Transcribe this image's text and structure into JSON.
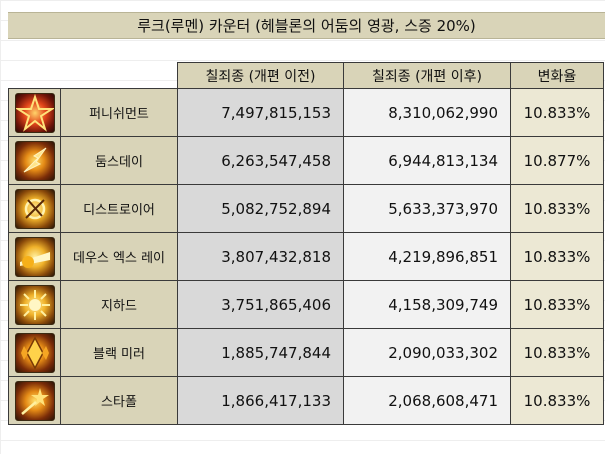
{
  "title": "루크(루멘) 카운터 (헤블론의 어둠의 영광, 스증 20%)",
  "headers": {
    "before": "칠죄종 (개편 이전)",
    "after": "칠죄종 (개편 이후)",
    "rate": "변화율"
  },
  "colors": {
    "header_bg": "#d9d4b8",
    "before_bg": "#d9d9d9",
    "after_bg": "#f2f2f2",
    "rate_bg": "#ece8d4"
  },
  "rows": [
    {
      "icon": "punishment-skill-icon",
      "name": "퍼니쉬먼트",
      "before": "7,497,815,153",
      "after": "8,310,062,990",
      "rate": "10.833%"
    },
    {
      "icon": "doomsday-skill-icon",
      "name": "둠스데이",
      "before": "6,263,547,458",
      "after": "6,944,813,134",
      "rate": "10.877%"
    },
    {
      "icon": "destroyer-skill-icon",
      "name": "디스트로이어",
      "before": "5,082,752,894",
      "after": "5,633,373,970",
      "rate": "10.833%"
    },
    {
      "icon": "deus-ex-ray-skill-icon",
      "name": "데우스 엑스 레이",
      "before": "3,807,432,818",
      "after": "4,219,896,851",
      "rate": "10.833%"
    },
    {
      "icon": "jihad-skill-icon",
      "name": "지하드",
      "before": "3,751,865,406",
      "after": "4,158,309,749",
      "rate": "10.833%"
    },
    {
      "icon": "black-mirror-skill-icon",
      "name": "블랙 미러",
      "before": "1,885,747,844",
      "after": "2,090,033,302",
      "rate": "10.833%"
    },
    {
      "icon": "star-fall-skill-icon",
      "name": "스타폴",
      "before": "1,866,417,133",
      "after": "2,068,608,471",
      "rate": "10.833%"
    }
  ]
}
